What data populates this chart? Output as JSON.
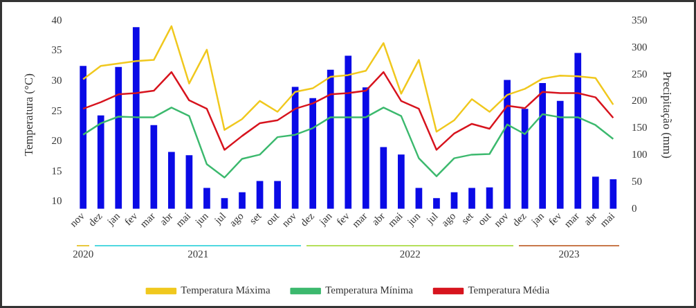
{
  "chart_data": {
    "type": "bar",
    "ylabel": "Temperatura (°C)",
    "y2label": "Precipitação (mm)",
    "categories": [
      "nov",
      "dez",
      "jan",
      "fev",
      "mar",
      "abr",
      "mai",
      "jun",
      "jul",
      "ago",
      "set",
      "out",
      "nov",
      "dez",
      "jan",
      "fev",
      "mar",
      "abr",
      "mai",
      "jun",
      "jul",
      "ago",
      "set",
      "out",
      "nov",
      "dez",
      "jan",
      "fev",
      "mar",
      "abr",
      "mai"
    ],
    "series": [
      {
        "axis": "y2",
        "color": "#0a0ae6",
        "values": [
          266,
          174,
          264,
          338,
          156,
          106,
          100,
          39,
          20,
          31,
          52,
          52,
          227,
          206,
          259,
          285,
          226,
          115,
          101,
          39,
          20,
          31,
          39,
          40,
          240,
          186,
          234,
          201,
          290,
          60,
          55
        ]
      },
      {
        "type": "line",
        "axis": "y",
        "name": "Temperatura Máxima",
        "color": "#f0c81e",
        "values": [
          30.3,
          32.5,
          32.9,
          33.3,
          33.5,
          39.1,
          29.6,
          35.2,
          21.9,
          23.7,
          26.7,
          24.9,
          28.2,
          28.8,
          30.7,
          31.0,
          31.7,
          36.3,
          27.9,
          33.5,
          21.6,
          23.5,
          27.0,
          24.9,
          27.7,
          28.7,
          30.4,
          30.9,
          30.8,
          30.5,
          26.1
        ]
      },
      {
        "type": "line",
        "axis": "y",
        "name": "Temperatura Mínima",
        "color": "#3cb96e",
        "values": [
          21.1,
          23.0,
          24.1,
          24.0,
          24.0,
          25.6,
          24.2,
          16.2,
          14.0,
          17.1,
          17.8,
          20.7,
          21.1,
          22.2,
          24.0,
          24.0,
          24.0,
          25.6,
          24.2,
          17.2,
          14.2,
          17.2,
          17.8,
          17.9,
          22.8,
          21.2,
          24.5,
          24.0,
          24.0,
          22.7,
          20.4
        ]
      },
      {
        "type": "line",
        "axis": "y",
        "name": "Temperatura Média",
        "color": "#d7141e",
        "values": [
          25.4,
          26.5,
          27.8,
          28.0,
          28.4,
          31.5,
          26.8,
          25.4,
          18.6,
          20.9,
          23.0,
          23.5,
          25.4,
          26.3,
          27.8,
          28.0,
          28.4,
          31.5,
          26.7,
          25.4,
          18.6,
          21.3,
          22.9,
          22.1,
          25.9,
          25.5,
          28.2,
          28.0,
          28.0,
          27.3,
          23.9
        ]
      }
    ],
    "ylim": [
      8.8,
      40
    ],
    "yticks": [
      10,
      15,
      20,
      25,
      30,
      35,
      40
    ],
    "y2lim": [
      0,
      350
    ],
    "y2ticks": [
      0,
      50,
      100,
      150,
      200,
      250,
      300,
      350
    ],
    "annotations": [
      "2020",
      "2021",
      "2022",
      "2023"
    ],
    "grid": false,
    "legend": "bottom",
    "marker": "none",
    "line_style": "solid"
  }
}
